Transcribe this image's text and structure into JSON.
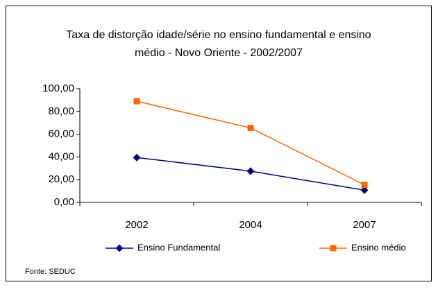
{
  "chart_data": {
    "type": "line",
    "title": "Taxa de distorção idade/série no ensino fundamental e ensino médio - Novo Oriente -  2002/2007",
    "categories": [
      "2002",
      "2004",
      "2007"
    ],
    "series": [
      {
        "name": "Ensino Fundamental",
        "color": "#000080",
        "marker": "diamond",
        "values": [
          39.5,
          27.5,
          10.8
        ]
      },
      {
        "name": "Ensino médio",
        "color": "#ff6600",
        "marker": "square",
        "values": [
          89,
          65.5,
          15.5
        ]
      }
    ],
    "ylim": [
      0,
      100
    ],
    "yticks": [
      {
        "value": 0,
        "label": "0,00"
      },
      {
        "value": 20,
        "label": "20,00"
      },
      {
        "value": 40,
        "label": "40,00"
      },
      {
        "value": 60,
        "label": "60,00"
      },
      {
        "value": 80,
        "label": "80,00"
      },
      {
        "value": 100,
        "label": "100,00"
      }
    ],
    "grid": false,
    "legend": "bottom",
    "annotation": "Fonte: SEDUC"
  }
}
